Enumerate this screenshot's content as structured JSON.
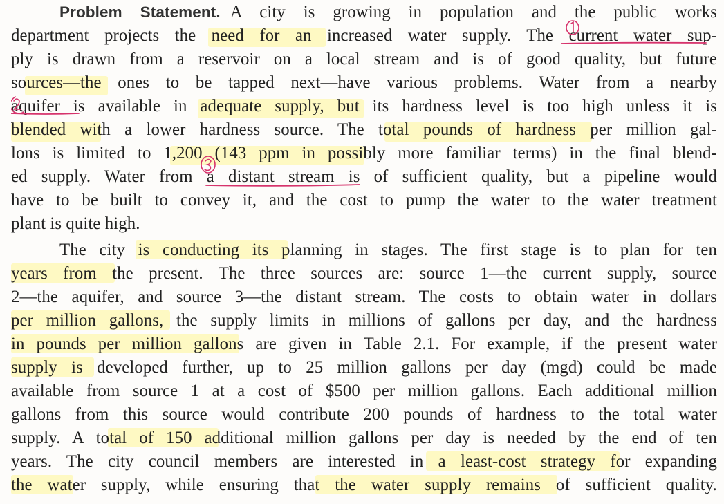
{
  "heading": "Problem Statement.",
  "lines": [
    "A city is growing in population and the public works",
    "department projects the need for an increased water supply. The current water sup-",
    "ply is drawn from a reservoir on a local stream and is of good quality, but future",
    "sources—the ones to be tapped next—have various problems. Water from a nearby",
    "aquifer is available in adequate supply, but its hardness level is too high unless it is",
    "blended with a lower hardness source. The total pounds of hardness per million gal-",
    "lons is limited to 1,200 (143 ppm in possibly more familiar terms) in the final blend-",
    "ed supply. Water from a distant stream is of sufficient quality, but a pipeline would",
    "have to be built to convey it, and the cost to pump the water to the water treatment",
    "plant is quite high.",
    "The city is conducting its planning in stages. The first stage is to plan for ten",
    "years from the present. The three sources are: source 1—the current supply, source",
    "2—the aquifer, and source 3—the distant stream. The costs to obtain water in dollars",
    "per million gallons, the supply limits in millions of gallons per day, and the hardness",
    "in pounds per million gallons are given in Table 2.1. For example, if the present water",
    "supply is developed further, up to 25 million gallons per day (mgd) could be made",
    "available from source 1 at a cost of $500 per million gallons. Each additional million",
    "gallons from this source would contribute 200 pounds of hardness to the total water",
    "supply. A total of 150 additional million gallons per day is needed by the end of ten",
    "years. The city council members are interested in a least-cost strategy for expanding",
    "the water supply, while ensuring that the water supply remains of sufficient quality."
  ],
  "colors": {
    "text": "#222222",
    "heading": "#333333",
    "highlight": "#fff696",
    "annotation_pen": "#d6336c"
  },
  "annotations": {
    "circled_1_icon": "circled-number-1",
    "circled_2_icon": "circled-number-2",
    "circled_3_icon": "circled-number-3"
  }
}
